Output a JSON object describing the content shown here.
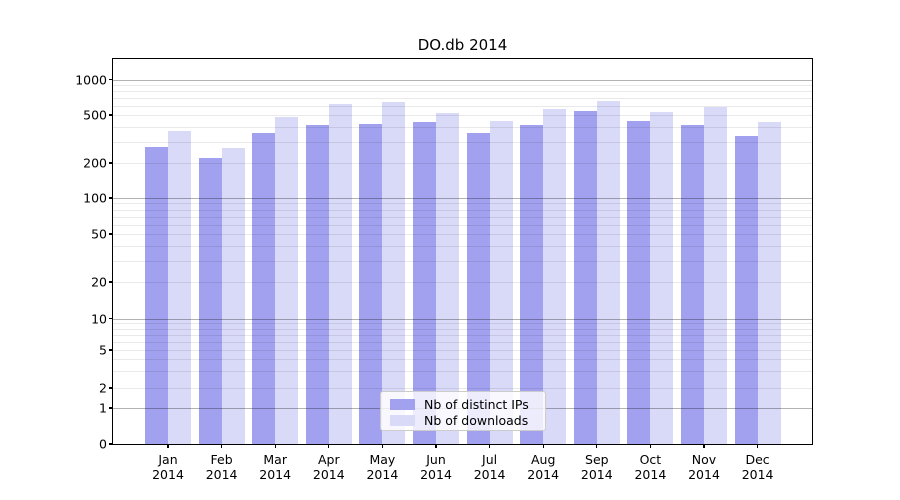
{
  "title": "DO.db 2014",
  "colors": {
    "ips": "#a1a1f0",
    "downloads": "#d9d9f8"
  },
  "legend": {
    "items": [
      {
        "label": "Nb of distinct IPs",
        "series": "ips"
      },
      {
        "label": "Nb of downloads",
        "series": "downloads"
      }
    ]
  },
  "y_axis": {
    "tick_labels": [
      "0",
      "1",
      "2",
      "5",
      "10",
      "20",
      "50",
      "100",
      "200",
      "500",
      "1000"
    ],
    "tick_values": [
      0,
      1,
      2,
      5,
      10,
      20,
      50,
      100,
      200,
      500,
      1000
    ]
  },
  "x_axis": {
    "months": [
      "Jan",
      "Feb",
      "Mar",
      "Apr",
      "May",
      "Jun",
      "Jul",
      "Aug",
      "Sep",
      "Oct",
      "Nov",
      "Dec"
    ],
    "year": "2014"
  },
  "chart_data": {
    "type": "bar",
    "title": "DO.db 2014",
    "categories": [
      "Jan 2014",
      "Feb 2014",
      "Mar 2014",
      "Apr 2014",
      "May 2014",
      "Jun 2014",
      "Jul 2014",
      "Aug 2014",
      "Sep 2014",
      "Oct 2014",
      "Nov 2014",
      "Dec 2014"
    ],
    "series": [
      {
        "name": "Nb of distinct IPs",
        "color": "#a1a1f0",
        "values": [
          270,
          220,
          355,
          410,
          420,
          435,
          355,
          410,
          540,
          445,
          410,
          335
        ]
      },
      {
        "name": "Nb of downloads",
        "color": "#d9d9f8",
        "values": [
          370,
          265,
          480,
          620,
          640,
          520,
          450,
          560,
          660,
          530,
          590,
          435
        ]
      }
    ],
    "xlabel": "",
    "ylabel": "",
    "yscale": "log-with-zero",
    "ylim": [
      0,
      1000
    ],
    "yticks": [
      0,
      1,
      2,
      5,
      10,
      20,
      50,
      100,
      200,
      500,
      1000
    ],
    "grid": true,
    "legend_position": "lower center"
  }
}
